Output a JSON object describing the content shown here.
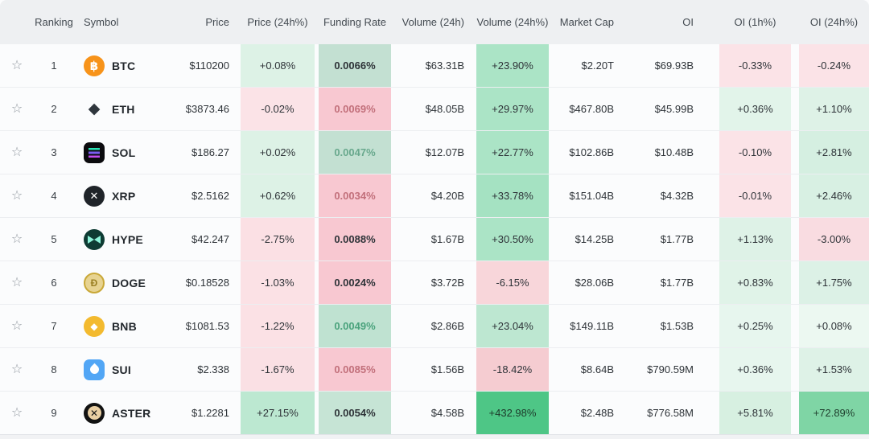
{
  "icons": {
    "favorite_star": "star-outline-icon",
    "coins": [
      "btc-coin-icon",
      "eth-coin-icon",
      "sol-coin-icon",
      "xrp-coin-icon",
      "hype-coin-icon",
      "doge-coin-icon",
      "bnb-coin-icon",
      "sui-coin-icon",
      "aster-coin-icon"
    ]
  },
  "colors": {
    "header_bg": "#eef0f2",
    "row_bg": "#fbfcfd",
    "positive_light_bg": "#ddf2e6",
    "negative_light_bg": "#fbe3e7",
    "positive_strong_bg": "#4ec686",
    "funding_positive_bg": "#c3e0d2",
    "funding_negative_bg": "#f8c8d1"
  },
  "table": {
    "headers": {
      "ranking": "Ranking",
      "symbol": "Symbol",
      "price": "Price",
      "price_24h": "Price (24h%)",
      "funding": "Funding Rate",
      "volume": "Volume (24h)",
      "volume_24h": "Volume (24h%)",
      "market_cap": "Market Cap",
      "oi": "OI",
      "oi_1h": "OI (1h%)",
      "oi_24h": "OI (24h%)"
    },
    "rows": [
      {
        "rank": "1",
        "symbol": "BTC",
        "icon": "btc",
        "price": "$110200",
        "price_24h": {
          "text": "+0.08%",
          "bg": "#ddf2e6"
        },
        "funding": {
          "text": "0.0066%",
          "bg": "#c3e0d2"
        },
        "volume": "$63.31B",
        "volume_24h": {
          "text": "+23.90%",
          "bg": "#abe4c6"
        },
        "market_cap": "$2.20T",
        "oi": "$69.93B",
        "oi_1h": {
          "text": "-0.33%",
          "bg": "#fbe3e7"
        },
        "oi_24h": {
          "text": "-0.24%",
          "bg": "#fbe3e7"
        }
      },
      {
        "rank": "2",
        "symbol": "ETH",
        "icon": "eth",
        "price": "$3873.46",
        "price_24h": {
          "text": "-0.02%",
          "bg": "#fbe3e7"
        },
        "funding": {
          "text": "0.0069%",
          "bg": "#f8c8d1",
          "fg": "#c2707b"
        },
        "volume": "$48.05B",
        "volume_24h": {
          "text": "+29.97%",
          "bg": "#abe4c6"
        },
        "market_cap": "$467.80B",
        "oi": "$45.99B",
        "oi_1h": {
          "text": "+0.36%",
          "bg": "#e2f4ea"
        },
        "oi_24h": {
          "text": "+1.10%",
          "bg": "#def2e7"
        }
      },
      {
        "rank": "3",
        "symbol": "SOL",
        "icon": "sol",
        "price": "$186.27",
        "price_24h": {
          "text": "+0.02%",
          "bg": "#ddf2e6"
        },
        "funding": {
          "text": "0.0047%",
          "bg": "#c3e0d2",
          "fg": "#68a88d"
        },
        "volume": "$12.07B",
        "volume_24h": {
          "text": "+22.77%",
          "bg": "#abe4c6"
        },
        "market_cap": "$102.86B",
        "oi": "$10.48B",
        "oi_1h": {
          "text": "-0.10%",
          "bg": "#fbe3e7"
        },
        "oi_24h": {
          "text": "+2.81%",
          "bg": "#d5efe1"
        }
      },
      {
        "rank": "4",
        "symbol": "XRP",
        "icon": "xrp",
        "price": "$2.5162",
        "price_24h": {
          "text": "+0.62%",
          "bg": "#ddf2e6"
        },
        "funding": {
          "text": "0.0034%",
          "bg": "#f8c8d1",
          "fg": "#c2707b"
        },
        "volume": "$4.20B",
        "volume_24h": {
          "text": "+33.78%",
          "bg": "#a5e2c2"
        },
        "market_cap": "$151.04B",
        "oi": "$4.32B",
        "oi_1h": {
          "text": "-0.01%",
          "bg": "#fbe3e7"
        },
        "oi_24h": {
          "text": "+2.46%",
          "bg": "#d8f0e3"
        }
      },
      {
        "rank": "5",
        "symbol": "HYPE",
        "icon": "hype",
        "price": "$42.247",
        "price_24h": {
          "text": "-2.75%",
          "bg": "#fbe0e4"
        },
        "funding": {
          "text": "0.0088%",
          "bg": "#f8c8d1"
        },
        "volume": "$1.67B",
        "volume_24h": {
          "text": "+30.50%",
          "bg": "#abe4c6"
        },
        "market_cap": "$14.25B",
        "oi": "$1.77B",
        "oi_1h": {
          "text": "+1.13%",
          "bg": "#def2e7"
        },
        "oi_24h": {
          "text": "-3.00%",
          "bg": "#f9dce1"
        }
      },
      {
        "rank": "6",
        "symbol": "DOGE",
        "icon": "doge",
        "price": "$0.18528",
        "price_24h": {
          "text": "-1.03%",
          "bg": "#fbe1e5"
        },
        "funding": {
          "text": "0.0024%",
          "bg": "#f8c8d1"
        },
        "volume": "$3.72B",
        "volume_24h": {
          "text": "-6.15%",
          "bg": "#f8d6da"
        },
        "market_cap": "$28.06B",
        "oi": "$1.77B",
        "oi_1h": {
          "text": "+0.83%",
          "bg": "#e0f3e8"
        },
        "oi_24h": {
          "text": "+1.75%",
          "bg": "#dcf1e6"
        }
      },
      {
        "rank": "7",
        "symbol": "BNB",
        "icon": "bnb",
        "price": "$1081.53",
        "price_24h": {
          "text": "-1.22%",
          "bg": "#fbe1e5"
        },
        "funding": {
          "text": "0.0049%",
          "bg": "#bfe2d1",
          "fg": "#4ba37d"
        },
        "volume": "$2.86B",
        "volume_24h": {
          "text": "+23.04%",
          "bg": "#bde7d1"
        },
        "market_cap": "$149.11B",
        "oi": "$1.53B",
        "oi_1h": {
          "text": "+0.25%",
          "bg": "#e7f6ee"
        },
        "oi_24h": {
          "text": "+0.08%",
          "bg": "#ecf8f1"
        }
      },
      {
        "rank": "8",
        "symbol": "SUI",
        "icon": "sui",
        "price": "$2.338",
        "price_24h": {
          "text": "-1.67%",
          "bg": "#fae0e4"
        },
        "funding": {
          "text": "0.0085%",
          "bg": "#f8c8d1",
          "fg": "#c2707b"
        },
        "volume": "$1.56B",
        "volume_24h": {
          "text": "-18.42%",
          "bg": "#f5ccd1"
        },
        "market_cap": "$8.64B",
        "oi": "$790.59M",
        "oi_1h": {
          "text": "+0.36%",
          "bg": "#e7f6ee"
        },
        "oi_24h": {
          "text": "+1.53%",
          "bg": "#def2e7"
        }
      },
      {
        "rank": "9",
        "symbol": "ASTER",
        "icon": "aster",
        "price": "$1.2281",
        "price_24h": {
          "text": "+27.15%",
          "bg": "#bce8d1"
        },
        "funding": {
          "text": "0.0054%",
          "bg": "#c6e4d5"
        },
        "volume": "$4.58B",
        "volume_24h": {
          "text": "+432.98%",
          "bg": "#4ec686",
          "fg": "#1d3a2b"
        },
        "market_cap": "$2.48B",
        "oi": "$776.58M",
        "oi_1h": {
          "text": "+5.81%",
          "bg": "#d7f0e1"
        },
        "oi_24h": {
          "text": "+72.89%",
          "bg": "#7fd5a5",
          "fg": "#20402f"
        }
      }
    ]
  }
}
